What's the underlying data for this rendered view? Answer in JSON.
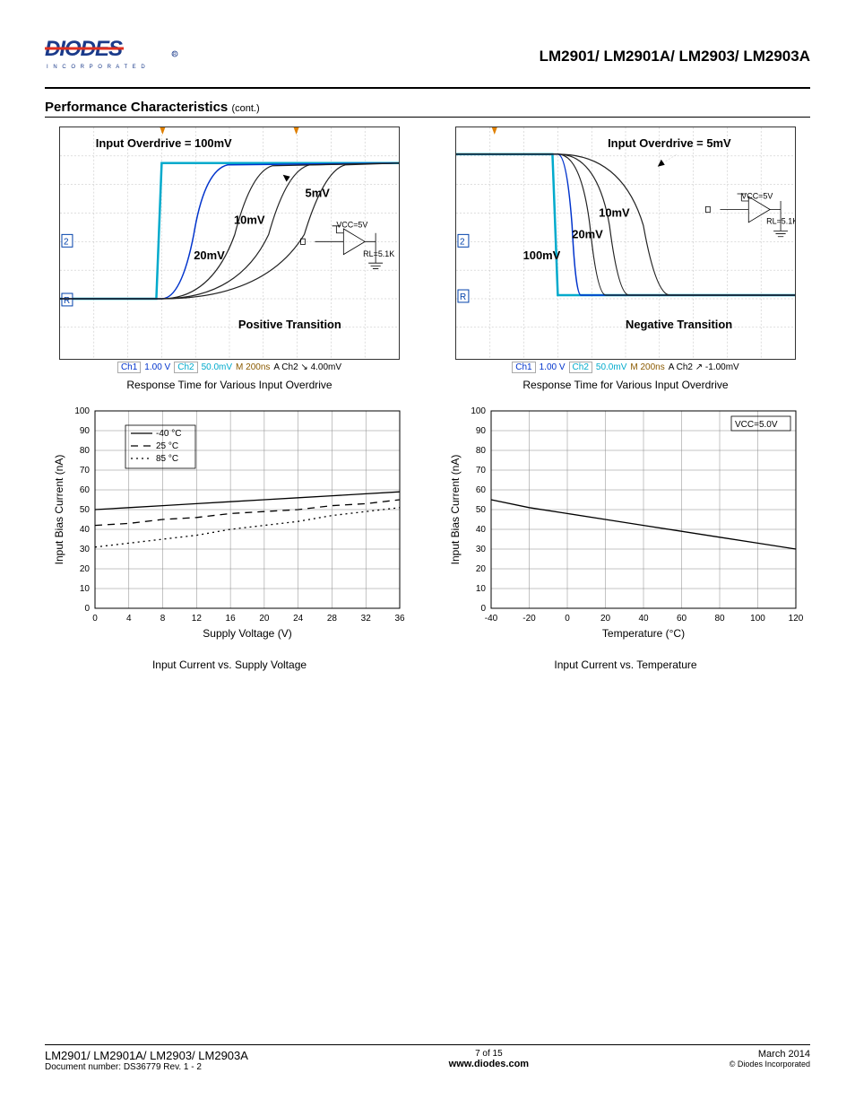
{
  "header": {
    "logo_text_main": "DIODES",
    "logo_text_sub": "I N C O R P O R A T E D",
    "part_title": "LM2901/ LM2901A/ LM2903/ LM2903A"
  },
  "section": {
    "title": "Performance Characteristics",
    "cont": "(cont.)"
  },
  "scope1": {
    "title_annot": "Input Overdrive = 100mV",
    "labels": [
      "5mV",
      "10mV",
      "20mV"
    ],
    "vcc_note": "VCC=5V",
    "rl_note": "RL=5.1K",
    "transition": "Positive Transition",
    "caption": "Response Time for Various Input Overdrive",
    "footer": {
      "ch1": "Ch1",
      "ch1_v": "1.00 V",
      "ch2": "Ch2",
      "ch2_v": "50.0mV",
      "time": "M 200ns",
      "trig": "A  Ch2 ↘ 4.00mV"
    },
    "colors": {
      "cyan": "#00aacc",
      "blue": "#0033cc",
      "black": "#222222"
    }
  },
  "scope2": {
    "title_annot": "Input Overdrive = 5mV",
    "labels": [
      "10mV",
      "20mV",
      "100mV"
    ],
    "vcc_note": "VCC=5V",
    "rl_note": "RL=5.1K",
    "transition": "Negative Transition",
    "caption": "Response Time for Various Input Overdrive",
    "footer": {
      "ch1": "Ch1",
      "ch1_v": "1.00 V",
      "ch2": "Ch2",
      "ch2_v": "50.0mV",
      "time": "M 200ns",
      "trig": "A  Ch2 ↗ -1.00mV"
    }
  },
  "chart3": {
    "type": "line",
    "xlabel": "Supply Voltage (V)",
    "ylabel": "Input Bias Current (nA)",
    "caption": "Input Current vs. Supply Voltage",
    "xlim": [
      0,
      36
    ],
    "xtick_step": 4,
    "ylim": [
      0,
      100
    ],
    "ytick_step": 10,
    "legend": [
      {
        "label": "-40 °C",
        "style": "solid"
      },
      {
        "label": "25 °C",
        "style": "dash"
      },
      {
        "label": "85 °C",
        "style": "dot"
      }
    ],
    "series": {
      "s_neg40": {
        "x": [
          0,
          4,
          8,
          12,
          16,
          20,
          24,
          28,
          32,
          36
        ],
        "y": [
          50,
          51,
          52,
          53,
          54,
          55,
          56,
          57,
          58,
          59
        ],
        "style": "solid"
      },
      "s_25": {
        "x": [
          0,
          4,
          8,
          12,
          16,
          20,
          24,
          28,
          32,
          36
        ],
        "y": [
          42,
          43,
          45,
          46,
          48,
          49,
          50,
          52,
          53,
          55
        ],
        "style": "dash"
      },
      "s_85": {
        "x": [
          0,
          4,
          8,
          12,
          16,
          20,
          24,
          28,
          32,
          36
        ],
        "y": [
          31,
          33,
          35,
          37,
          40,
          42,
          44,
          47,
          49,
          51
        ],
        "style": "dot"
      }
    },
    "grid_color": "#888888",
    "background_color": "#ffffff"
  },
  "chart4": {
    "type": "line",
    "xlabel": "Temperature (°C)",
    "ylabel": "Input Bias Current (nA)",
    "caption": "Input Current vs. Temperature",
    "xlim": [
      -40,
      120
    ],
    "xtick_step": 20,
    "ylim": [
      0,
      100
    ],
    "ytick_step": 10,
    "annot": "VCC=5.0V",
    "series": {
      "main": {
        "x": [
          -40,
          -20,
          0,
          20,
          40,
          60,
          80,
          100,
          120
        ],
        "y": [
          55,
          51,
          48,
          45,
          42,
          39,
          36,
          33,
          30
        ],
        "style": "solid"
      }
    },
    "grid_color": "#888888",
    "background_color": "#ffffff"
  },
  "footer": {
    "parts": "LM2901/ LM2901A/ LM2903/ LM2903A",
    "docnum": "Document number: DS36779  Rev. 1 - 2",
    "page": "7 of 15",
    "url": "www.diodes.com",
    "date": "March 2014",
    "copyright": "© Diodes Incorporated"
  }
}
